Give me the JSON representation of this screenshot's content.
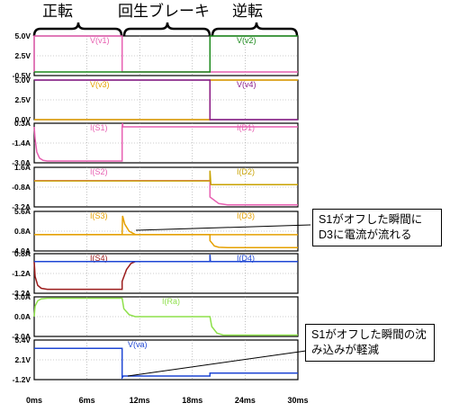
{
  "phases": [
    "正転",
    "回生ブレーキ",
    "逆転"
  ],
  "callouts": [
    {
      "text": "S1がオフした瞬間にD3に電流が流れる"
    },
    {
      "text": "S1がオフした瞬間の沈み込みが軽減"
    }
  ],
  "colors": {
    "v1": "#e75fb1",
    "v2": "#1b8a1b",
    "v3": "#e5a000",
    "v4": "#8a1a8a",
    "S1": "#e75fb1",
    "D1": "#e75fb1",
    "S2": "#e75fb1",
    "D2": "#c8a200",
    "S3": "#e5a000",
    "D3": "#e5a000",
    "S4": "#9b1b1b",
    "D4": "#1e46d4",
    "Ra": "#8ee04a",
    "va": "#1e46d4"
  },
  "chart_data": {
    "type": "line",
    "x_unit": "ms",
    "x_ticks": [
      "0ms",
      "6ms",
      "12ms",
      "18ms",
      "24ms",
      "30ms"
    ],
    "xlim": [
      0,
      30
    ],
    "panels": [
      {
        "ticks": [
          "5.0V",
          "2.5V",
          "-0.5V"
        ],
        "ylim": [
          -0.5,
          5.0
        ],
        "series": [
          {
            "name": "V(v1)",
            "color": "v1",
            "points": [
              [
                0,
                0
              ],
              [
                0.0,
                5.0
              ],
              [
                10,
                5.0
              ],
              [
                10,
                0.0
              ],
              [
                30,
                0.0
              ]
            ]
          },
          {
            "name": "V(v2)",
            "color": "v2",
            "points": [
              [
                0,
                0.0
              ],
              [
                20,
                0.0
              ],
              [
                20,
                5.0
              ],
              [
                30,
                5.0
              ]
            ]
          }
        ]
      },
      {
        "ticks": [
          "5.0V",
          "2.5V",
          "0.0V"
        ],
        "ylim": [
          0.0,
          5.0
        ],
        "series": [
          {
            "name": "V(v3)",
            "color": "v3",
            "points": [
              [
                0,
                0.0
              ],
              [
                20,
                0.0
              ],
              [
                20,
                5.0
              ],
              [
                30,
                5.0
              ]
            ]
          },
          {
            "name": "V(v4)",
            "color": "v4",
            "points": [
              [
                0,
                5.0
              ],
              [
                20,
                5.0
              ],
              [
                20,
                0.0
              ],
              [
                30,
                0.0
              ]
            ]
          }
        ]
      },
      {
        "ticks": [
          "0.3A",
          "-1.4A",
          "-3.0A"
        ],
        "ylim": [
          -3.0,
          0.3
        ],
        "series": [
          {
            "name": "I(S1)",
            "color": "S1",
            "points": [
              [
                0,
                0.0
              ],
              [
                0.1,
                -1.0
              ],
              [
                0.3,
                -2.1
              ],
              [
                0.6,
                -2.6
              ],
              [
                1.0,
                -2.8
              ],
              [
                1.5,
                -2.85
              ],
              [
                10,
                -2.85
              ],
              [
                10,
                0.0
              ],
              [
                30,
                0.0
              ]
            ]
          },
          {
            "name": "I(D1)",
            "color": "D1",
            "points": [
              [
                10,
                0.0
              ],
              [
                10.05,
                0.3
              ],
              [
                10.1,
                0.0
              ]
            ]
          }
        ]
      },
      {
        "ticks": [
          "1.6A",
          "-0.8A",
          "-3.2A"
        ],
        "ylim": [
          -3.2,
          1.6
        ],
        "series": [
          {
            "name": "I(S2)",
            "color": "S2",
            "points": [
              [
                0,
                0.0
              ],
              [
                20,
                0.0
              ],
              [
                20,
                -2.0
              ],
              [
                21,
                -2.8
              ],
              [
                22,
                -2.95
              ],
              [
                30,
                -2.95
              ]
            ]
          },
          {
            "name": "I(D2)",
            "color": "D2",
            "points": [
              [
                0,
                -0.05
              ],
              [
                20,
                -0.05
              ],
              [
                20,
                1.2
              ],
              [
                20.1,
                -0.5
              ],
              [
                30,
                -0.5
              ]
            ]
          }
        ]
      },
      {
        "ticks": [
          "5.6A",
          "0.8A",
          "-4.0A"
        ],
        "ylim": [
          -4.0,
          5.6
        ],
        "series": [
          {
            "name": "I(S3)",
            "color": "S3",
            "points": [
              [
                0,
                0.0
              ],
              [
                10,
                0.0
              ],
              [
                10.05,
                4.5
              ],
              [
                10.3,
                2.5
              ],
              [
                10.8,
                0.8
              ],
              [
                11.5,
                0.0
              ],
              [
                20,
                0.0
              ],
              [
                20,
                -1.5
              ],
              [
                20.5,
                -2.8
              ],
              [
                21,
                -3.1
              ],
              [
                22,
                -3.2
              ],
              [
                30,
                -3.2
              ]
            ]
          },
          {
            "name": "I(D3)",
            "color": "D3",
            "points": [
              [
                0,
                -0.05
              ],
              [
                30,
                -0.05
              ]
            ]
          }
        ]
      },
      {
        "ticks": [
          "0.8A",
          "-1.2A",
          "-3.2A"
        ],
        "ylim": [
          -3.2,
          0.8
        ],
        "series": [
          {
            "name": "I(S4)",
            "color": "S4",
            "points": [
              [
                0,
                0.0
              ],
              [
                0.1,
                -1.5
              ],
              [
                0.4,
                -2.4
              ],
              [
                0.8,
                -2.7
              ],
              [
                1.5,
                -2.8
              ],
              [
                10,
                -2.8
              ],
              [
                10,
                -2.0
              ],
              [
                10.5,
                -0.8
              ],
              [
                11,
                -0.2
              ],
              [
                11.5,
                0.0
              ],
              [
                30,
                0.0
              ]
            ]
          },
          {
            "name": "I(D4)",
            "color": "D4",
            "points": [
              [
                0,
                0.0
              ],
              [
                20,
                0.0
              ],
              [
                20,
                0.7
              ],
              [
                20.05,
                0.0
              ],
              [
                30,
                0.0
              ]
            ]
          }
        ]
      },
      {
        "ticks": [
          "3.0A",
          "0.0A",
          "-3.0A"
        ],
        "ylim": [
          -3.0,
          3.0
        ],
        "series": [
          {
            "name": "I(Ra)",
            "color": "Ra",
            "points": [
              [
                0,
                0.0
              ],
              [
                0.1,
                1.6
              ],
              [
                0.4,
                2.4
              ],
              [
                0.8,
                2.7
              ],
              [
                1.5,
                2.8
              ],
              [
                10,
                2.8
              ],
              [
                10.2,
                1.2
              ],
              [
                10.8,
                0.3
              ],
              [
                11.5,
                0.0
              ],
              [
                20,
                0.0
              ],
              [
                20.2,
                -1.5
              ],
              [
                20.8,
                -2.5
              ],
              [
                21.5,
                -2.8
              ],
              [
                30,
                -2.8
              ]
            ]
          }
        ]
      },
      {
        "ticks": [
          "5.4V",
          "2.1V",
          "-1.2V"
        ],
        "ylim": [
          -1.2,
          5.4
        ],
        "series": [
          {
            "name": "V(va)",
            "color": "va",
            "points": [
              [
                0,
                4.0
              ],
              [
                10,
                4.0
              ],
              [
                10,
                -0.9
              ],
              [
                10.15,
                -0.6
              ],
              [
                20,
                -0.6
              ],
              [
                20,
                -0.1
              ],
              [
                30,
                -0.1
              ]
            ]
          }
        ]
      }
    ]
  }
}
